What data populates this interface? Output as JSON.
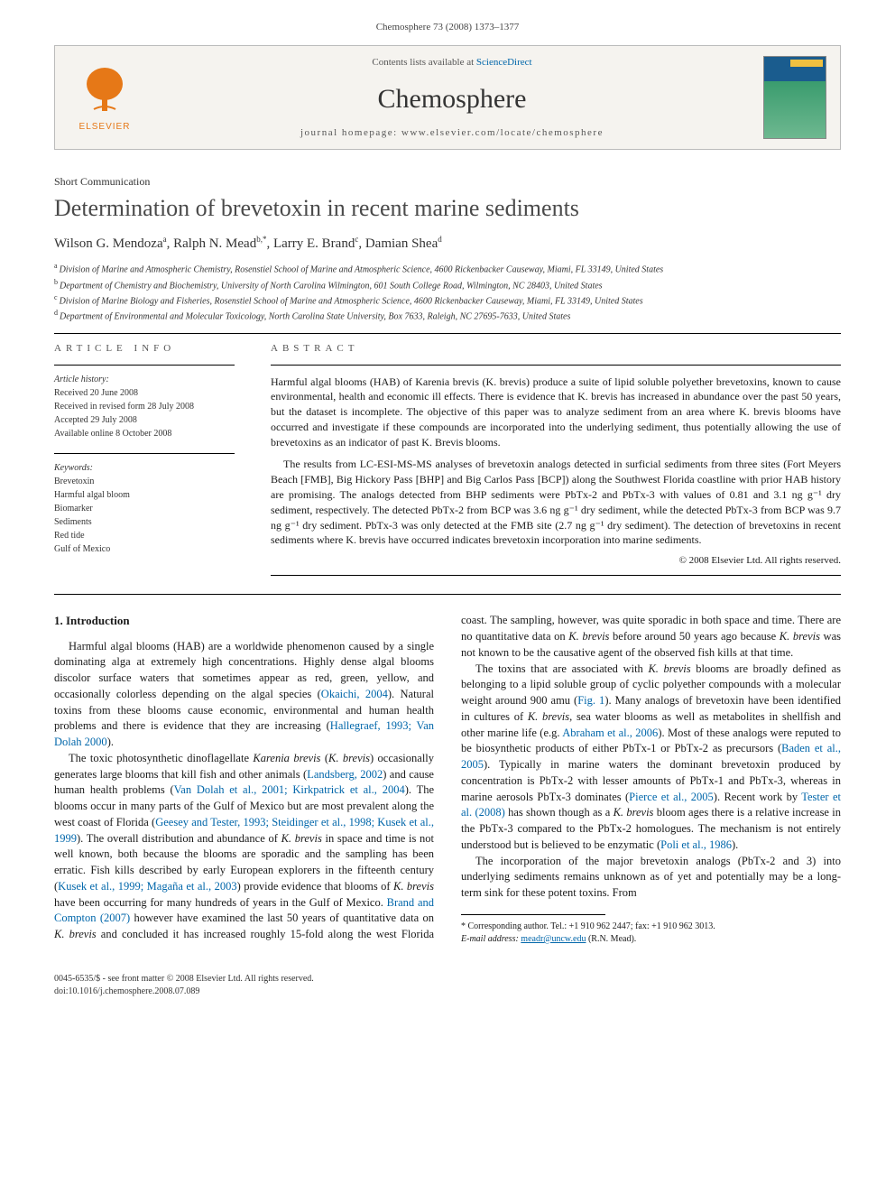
{
  "header": {
    "running": "Chemosphere 73 (2008) 1373–1377"
  },
  "masthead": {
    "contents_prefix": "Contents lists available at ",
    "contents_link": "ScienceDirect",
    "journal": "Chemosphere",
    "homepage_prefix": "journal homepage: ",
    "homepage": "www.elsevier.com/locate/chemosphere",
    "publisher_name": "ELSEVIER",
    "logo_color": "#e67817",
    "cover_colors": {
      "top": "#1a5c8e",
      "bottom": "#6eb890",
      "tag": "#f0c040"
    }
  },
  "article": {
    "type": "Short Communication",
    "title": "Determination of brevetoxin in recent marine sediments",
    "authors_html": "Wilson G. Mendoza ᵃ, Ralph N. Mead ᵇ·*, Larry E. Brand ᶜ, Damian Shea ᵈ",
    "authors": [
      {
        "name": "Wilson G. Mendoza",
        "aff": "a"
      },
      {
        "name": "Ralph N. Mead",
        "aff": "b,*"
      },
      {
        "name": "Larry E. Brand",
        "aff": "c"
      },
      {
        "name": "Damian Shea",
        "aff": "d"
      }
    ],
    "affiliations": [
      {
        "key": "a",
        "text": "Division of Marine and Atmospheric Chemistry, Rosenstiel School of Marine and Atmospheric Science, 4600 Rickenbacker Causeway, Miami, FL 33149, United States"
      },
      {
        "key": "b",
        "text": "Department of Chemistry and Biochemistry, University of North Carolina Wilmington, 601 South College Road, Wilmington, NC 28403, United States"
      },
      {
        "key": "c",
        "text": "Division of Marine Biology and Fisheries, Rosenstiel School of Marine and Atmospheric Science, 4600 Rickenbacker Causeway, Miami, FL 33149, United States"
      },
      {
        "key": "d",
        "text": "Department of Environmental and Molecular Toxicology, North Carolina State University, Box 7633, Raleigh, NC 27695-7633, United States"
      }
    ]
  },
  "info": {
    "label": "ARTICLE INFO",
    "history_label": "Article history:",
    "history": [
      "Received 20 June 2008",
      "Received in revised form 28 July 2008",
      "Accepted 29 July 2008",
      "Available online 8 October 2008"
    ],
    "keywords_label": "Keywords:",
    "keywords": [
      "Brevetoxin",
      "Harmful algal bloom",
      "Biomarker",
      "Sediments",
      "Red tide",
      "Gulf of Mexico"
    ]
  },
  "abstract": {
    "label": "ABSTRACT",
    "paragraphs": [
      "Harmful algal blooms (HAB) of Karenia brevis (K. brevis) produce a suite of lipid soluble polyether brevetoxins, known to cause environmental, health and economic ill effects. There is evidence that K. brevis has increased in abundance over the past 50 years, but the dataset is incomplete. The objective of this paper was to analyze sediment from an area where K. brevis blooms have occurred and investigate if these compounds are incorporated into the underlying sediment, thus potentially allowing the use of brevetoxins as an indicator of past K. Brevis blooms.",
      "The results from LC-ESI-MS-MS analyses of brevetoxin analogs detected in surficial sediments from three sites (Fort Meyers Beach [FMB], Big Hickory Pass [BHP] and Big Carlos Pass [BCP]) along the Southwest Florida coastline with prior HAB history are promising. The analogs detected from BHP sediments were PbTx-2 and PbTx-3 with values of 0.81 and 3.1 ng g⁻¹ dry sediment, respectively. The detected PbTx-2 from BCP was 3.6 ng g⁻¹ dry sediment, while the detected PbTx-3 from BCP was 9.7 ng g⁻¹ dry sediment. PbTx-3 was only detected at the FMB site (2.7 ng g⁻¹ dry sediment). The detection of brevetoxins in recent sediments where K. brevis have occurred indicates brevetoxin incorporation into marine sediments."
    ],
    "copyright": "© 2008 Elsevier Ltd. All rights reserved."
  },
  "body": {
    "section_heading": "1. Introduction",
    "paragraphs": [
      "Harmful algal blooms (HAB) are a worldwide phenomenon caused by a single dominating alga at extremely high concentrations. Highly dense algal blooms discolor surface waters that sometimes appear as red, green, yellow, and occasionally colorless depending on the algal species (<span class=\"ref\">Okaichi, 2004</span>). Natural toxins from these blooms cause economic, environmental and human health problems and there is evidence that they are increasing (<span class=\"ref\">Hallegraef, 1993; Van Dolah 2000</span>).",
      "The toxic photosynthetic dinoflagellate <i>Karenia brevis</i> (<i>K. brevis</i>) occasionally generates large blooms that kill fish and other animals (<span class=\"ref\">Landsberg, 2002</span>) and cause human health problems (<span class=\"ref\">Van Dolah et al., 2001; Kirkpatrick et al., 2004</span>). The blooms occur in many parts of the Gulf of Mexico but are most prevalent along the west coast of Florida (<span class=\"ref\">Geesey and Tester, 1993; Steidinger et al., 1998; Kusek et al., 1999</span>). The overall distribution and abundance of <i>K. brevis</i> in space and time is not well known, both because the blooms are sporadic and the sampling has been erratic. Fish kills described by early European explorers in the fifteenth century (<span class=\"ref\">Kusek et al., 1999; Magaña et al., 2003</span>) provide evidence that blooms of <i>K. brevis</i> have been occurring for many hundreds of years in the Gulf of Mexico. <span class=\"ref\">Brand and Compton (2007)</span> however have examined the last 50 years of quantitative data on <i>K. brevis</i> and concluded it has increased roughly 15-fold along the west Florida coast. The sampling, however, was quite sporadic in both space and time. There are no quantitative data on <i>K. brevis</i> before around 50 years ago because <i>K. brevis</i> was not known to be the causative agent of the observed fish kills at that time.",
      "The toxins that are associated with <i>K. brevis</i> blooms are broadly defined as belonging to a lipid soluble group of cyclic polyether compounds with a molecular weight around 900 amu (<span class=\"ref\">Fig. 1</span>). Many analogs of brevetoxin have been identified in cultures of <i>K. brevis</i>, sea water blooms as well as metabolites in shellfish and other marine life (e.g. <span class=\"ref\">Abraham et al., 2006</span>). Most of these analogs were reputed to be biosynthetic products of either PbTx-1 or PbTx-2 as precursors (<span class=\"ref\">Baden et al., 2005</span>). Typically in marine waters the dominant brevetoxin produced by concentration is PbTx-2 with lesser amounts of PbTx-1 and PbTx-3, whereas in marine aerosols PbTx-3 dominates (<span class=\"ref\">Pierce et al., 2005</span>). Recent work by <span class=\"ref\">Tester et al. (2008)</span> has shown though as a <i>K. brevis</i> bloom ages there is a relative increase in the PbTx-3 compared to the PbTx-2 homologues. The mechanism is not entirely understood but is believed to be enzymatic (<span class=\"ref\">Poli et al., 1986</span>).",
      "The incorporation of the major brevetoxin analogs (PbTx-2 and 3) into underlying sediments remains unknown as of yet and potentially may be a long-term sink for these potent toxins. From"
    ]
  },
  "footnotes": {
    "corresponding": "* Corresponding author. Tel.: +1 910 962 2447; fax: +1 910 962 3013.",
    "email_label": "E-mail address:",
    "email": "meadr@uncw.edu",
    "email_who": "(R.N. Mead)."
  },
  "footer": {
    "line1": "0045-6535/$ - see front matter © 2008 Elsevier Ltd. All rights reserved.",
    "line2": "doi:10.1016/j.chemosphere.2008.07.089"
  },
  "colors": {
    "link": "#0066aa",
    "text": "#1a1a1a",
    "muted": "#555555",
    "rule": "#000000",
    "masthead_bg": "#f5f3ef"
  },
  "fonts": {
    "body_family": "Georgia, 'Times New Roman', serif",
    "title_size_pt": 20,
    "journal_size_pt": 23,
    "body_size_pt": 9.5,
    "abstract_size_pt": 9,
    "info_size_pt": 7.5
  }
}
